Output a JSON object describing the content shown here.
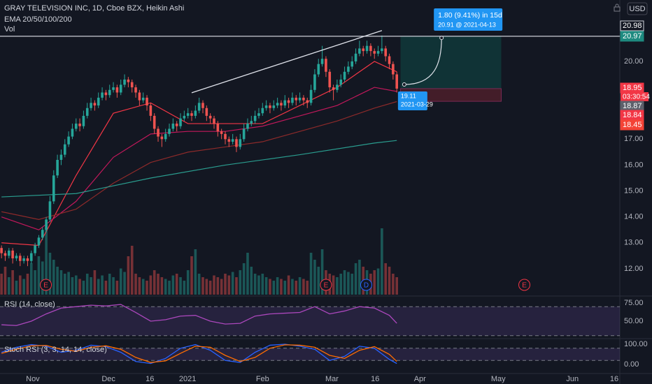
{
  "chart_data": [
    {
      "type": "candlestick",
      "title": "GRAY TELEVISION INC, 1D, Cboe BZX, Heikin Ashi",
      "indicator_label": "EMA 20/50/100/200",
      "volume_label": "Vol",
      "currency": "USD",
      "up_color": "#26a69a",
      "down_color": "#ef5350",
      "xlim": [
        -0.4,
        165.8
      ],
      "ylim": [
        11.0,
        22.37
      ],
      "yticks": [
        {
          "value": 12,
          "label": "12.00"
        },
        {
          "value": 13,
          "label": "13.00"
        },
        {
          "value": 14,
          "label": "14.00"
        },
        {
          "value": 15,
          "label": "15.00"
        },
        {
          "value": 16,
          "label": "16.00"
        },
        {
          "value": 17,
          "label": "17.00"
        },
        {
          "value": 20,
          "label": "20.00"
        }
      ],
      "xticks": [
        {
          "value": 8.4,
          "label": "Nov"
        },
        {
          "value": 28.7,
          "label": "Dec"
        },
        {
          "value": 39.8,
          "label": "16"
        },
        {
          "value": 49.9,
          "label": "2021"
        },
        {
          "value": 70.0,
          "label": "Feb"
        },
        {
          "value": 88.6,
          "label": "Mar"
        },
        {
          "value": 100.2,
          "label": "16"
        },
        {
          "value": 112.2,
          "label": "Apr"
        },
        {
          "value": 133.2,
          "label": "May"
        },
        {
          "value": 153.1,
          "label": "Jun"
        },
        {
          "value": 164.3,
          "label": "16"
        }
      ],
      "candles": [
        [
          12.8,
          12.9,
          12.4,
          12.6
        ],
        [
          12.6,
          12.7,
          12.3,
          12.5
        ],
        [
          12.5,
          12.8,
          12.4,
          12.7
        ],
        [
          12.7,
          12.8,
          12.2,
          12.4
        ],
        [
          12.4,
          12.6,
          12.3,
          12.5
        ],
        [
          12.5,
          12.6,
          12.1,
          12.3
        ],
        [
          12.3,
          12.5,
          12.2,
          12.4
        ],
        [
          12.4,
          12.5,
          12.1,
          12.3
        ],
        [
          12.3,
          12.7,
          12.2,
          12.6
        ],
        [
          12.6,
          13.0,
          12.5,
          12.9
        ],
        [
          12.9,
          13.3,
          12.8,
          13.2
        ],
        [
          13.2,
          13.6,
          13.1,
          13.5
        ],
        [
          13.5,
          14.0,
          13.4,
          13.9
        ],
        [
          13.9,
          14.8,
          13.8,
          14.6
        ],
        [
          14.6,
          15.8,
          14.5,
          15.6
        ],
        [
          15.6,
          16.4,
          15.5,
          16.2
        ],
        [
          16.2,
          16.6,
          16.0,
          16.4
        ],
        [
          16.4,
          17.0,
          16.3,
          16.8
        ],
        [
          16.8,
          17.3,
          16.7,
          17.1
        ],
        [
          17.1,
          17.6,
          17.0,
          17.4
        ],
        [
          17.4,
          17.8,
          17.3,
          17.6
        ],
        [
          17.6,
          17.8,
          17.3,
          17.5
        ],
        [
          17.5,
          18.1,
          17.4,
          17.9
        ],
        [
          17.9,
          18.4,
          17.8,
          18.2
        ],
        [
          18.2,
          18.6,
          18.1,
          18.4
        ],
        [
          18.4,
          18.5,
          18.1,
          18.3
        ],
        [
          18.3,
          18.8,
          18.2,
          18.6
        ],
        [
          18.6,
          19.0,
          18.5,
          18.8
        ],
        [
          18.8,
          18.9,
          18.5,
          18.7
        ],
        [
          18.7,
          19.1,
          18.6,
          18.9
        ],
        [
          18.9,
          19.2,
          18.8,
          19.0
        ],
        [
          19.0,
          19.1,
          18.6,
          18.8
        ],
        [
          18.8,
          19.3,
          18.7,
          19.1
        ],
        [
          19.1,
          19.5,
          19.0,
          19.3
        ],
        [
          19.3,
          19.4,
          19.0,
          19.2
        ],
        [
          19.2,
          19.3,
          18.8,
          19.0
        ],
        [
          19.0,
          19.1,
          18.6,
          18.8
        ],
        [
          18.8,
          18.9,
          18.3,
          18.5
        ],
        [
          18.5,
          18.8,
          18.4,
          18.6
        ],
        [
          18.6,
          18.7,
          18.1,
          18.3
        ],
        [
          18.3,
          18.4,
          17.7,
          17.9
        ],
        [
          17.9,
          18.0,
          17.2,
          17.4
        ],
        [
          17.4,
          17.5,
          16.9,
          17.1
        ],
        [
          17.1,
          17.2,
          16.7,
          17.0
        ],
        [
          17.0,
          17.4,
          16.9,
          17.2
        ],
        [
          17.2,
          17.6,
          17.1,
          17.4
        ],
        [
          17.4,
          17.8,
          17.3,
          17.6
        ],
        [
          17.6,
          17.7,
          17.3,
          17.5
        ],
        [
          17.5,
          18.0,
          17.4,
          17.8
        ],
        [
          17.8,
          18.1,
          17.7,
          17.9
        ],
        [
          17.9,
          18.2,
          17.8,
          18.0
        ],
        [
          18.0,
          18.1,
          17.7,
          17.9
        ],
        [
          17.9,
          18.3,
          17.8,
          18.1
        ],
        [
          18.1,
          18.6,
          18.0,
          18.4
        ],
        [
          18.4,
          18.5,
          18.0,
          18.2
        ],
        [
          18.2,
          18.3,
          17.7,
          17.9
        ],
        [
          17.9,
          18.0,
          17.6,
          17.8
        ],
        [
          17.8,
          17.9,
          17.4,
          17.6
        ],
        [
          17.6,
          17.7,
          17.1,
          17.3
        ],
        [
          17.3,
          17.4,
          17.0,
          17.2
        ],
        [
          17.2,
          17.3,
          16.8,
          17.0
        ],
        [
          17.0,
          17.1,
          16.7,
          16.9
        ],
        [
          16.9,
          17.2,
          16.8,
          17.0
        ],
        [
          17.0,
          17.1,
          16.5,
          16.7
        ],
        [
          16.7,
          17.2,
          16.6,
          17.0
        ],
        [
          17.0,
          17.6,
          16.9,
          17.4
        ],
        [
          17.4,
          17.8,
          17.3,
          17.6
        ],
        [
          17.6,
          17.9,
          17.5,
          17.7
        ],
        [
          17.7,
          18.1,
          17.6,
          17.9
        ],
        [
          17.9,
          18.2,
          17.8,
          18.0
        ],
        [
          18.0,
          18.4,
          17.9,
          18.2
        ],
        [
          18.2,
          18.5,
          18.1,
          18.3
        ],
        [
          18.3,
          18.4,
          18.0,
          18.2
        ],
        [
          18.2,
          18.5,
          18.1,
          18.3
        ],
        [
          18.3,
          18.6,
          18.2,
          18.4
        ],
        [
          18.4,
          18.5,
          18.1,
          18.3
        ],
        [
          18.3,
          18.7,
          18.2,
          18.5
        ],
        [
          18.5,
          18.6,
          18.2,
          18.4
        ],
        [
          18.4,
          18.8,
          18.3,
          18.6
        ],
        [
          18.6,
          18.7,
          18.3,
          18.5
        ],
        [
          18.5,
          18.8,
          18.4,
          18.6
        ],
        [
          18.6,
          18.7,
          18.3,
          18.5
        ],
        [
          18.5,
          18.6,
          18.2,
          18.4
        ],
        [
          18.4,
          19.1,
          18.3,
          18.9
        ],
        [
          18.9,
          19.7,
          18.8,
          19.5
        ],
        [
          19.5,
          20.1,
          19.4,
          19.9
        ],
        [
          19.9,
          20.6,
          19.8,
          20.1
        ],
        [
          20.1,
          20.2,
          19.4,
          19.6
        ],
        [
          19.6,
          19.7,
          18.8,
          19.0
        ],
        [
          19.0,
          19.1,
          18.5,
          18.9
        ],
        [
          18.9,
          19.3,
          18.8,
          19.1
        ],
        [
          19.1,
          19.5,
          19.0,
          19.3
        ],
        [
          19.3,
          19.8,
          19.2,
          19.6
        ],
        [
          19.6,
          20.0,
          19.5,
          19.8
        ],
        [
          19.8,
          20.2,
          19.7,
          20.0
        ],
        [
          20.0,
          20.5,
          19.9,
          20.3
        ],
        [
          20.3,
          20.8,
          20.2,
          20.5
        ],
        [
          20.5,
          20.6,
          20.2,
          20.4
        ],
        [
          20.4,
          20.8,
          20.3,
          20.6
        ],
        [
          20.6,
          20.7,
          20.2,
          20.4
        ],
        [
          20.4,
          20.5,
          20.1,
          20.3
        ],
        [
          20.3,
          20.6,
          20.2,
          20.4
        ],
        [
          20.4,
          21.0,
          20.3,
          20.5
        ],
        [
          20.5,
          20.6,
          20.0,
          20.2
        ],
        [
          20.2,
          20.3,
          19.7,
          19.9
        ],
        [
          19.9,
          20.0,
          19.3,
          19.5
        ],
        [
          19.5,
          19.6,
          18.8,
          18.95
        ]
      ],
      "volume": [
        60,
        80,
        50,
        70,
        40,
        55,
        45,
        60,
        90,
        70,
        110,
        95,
        190,
        120,
        100,
        80,
        70,
        60,
        65,
        50,
        55,
        45,
        40,
        60,
        50,
        70,
        45,
        55,
        40,
        60,
        50,
        40,
        75,
        65,
        110,
        140,
        60,
        50,
        45,
        40,
        55,
        70,
        60,
        50,
        45,
        40,
        55,
        60,
        50,
        40,
        70,
        110,
        130,
        60,
        50,
        45,
        40,
        55,
        50,
        45,
        60,
        55,
        65,
        50,
        70,
        90,
        120,
        80,
        60,
        55,
        60,
        50,
        45,
        40,
        50,
        45,
        40,
        55,
        45,
        40,
        50,
        45,
        40,
        120,
        100,
        80,
        130,
        70,
        60,
        55,
        50,
        60,
        70,
        65,
        60,
        90,
        100,
        80,
        70,
        60,
        70,
        75,
        190,
        90,
        80,
        60,
        50
      ],
      "ema": [
        {
          "color": "#f23645",
          "x": [
            0,
            10,
            20,
            30,
            40,
            50,
            60,
            70,
            80,
            90,
            100,
            106
          ],
          "values": [
            13.0,
            12.9,
            15.6,
            18.0,
            18.4,
            17.6,
            17.6,
            17.6,
            18.3,
            19.0,
            20.0,
            19.6
          ]
        },
        {
          "color": "#c2185b",
          "x": [
            0,
            10,
            20,
            30,
            40,
            50,
            60,
            70,
            80,
            90,
            100,
            106
          ],
          "values": [
            14.0,
            13.5,
            14.6,
            16.3,
            17.2,
            17.3,
            17.3,
            17.5,
            17.9,
            18.3,
            19.0,
            18.84
          ]
        },
        {
          "color": "#8d2a2a",
          "x": [
            0,
            10,
            20,
            30,
            40,
            50,
            60,
            70,
            80,
            90,
            100,
            106
          ],
          "values": [
            14.2,
            13.9,
            14.3,
            15.3,
            16.1,
            16.5,
            16.7,
            16.9,
            17.3,
            17.7,
            18.2,
            18.45
          ]
        },
        {
          "color": "#2a9d8f",
          "x": [
            0,
            20,
            40,
            60,
            80,
            100,
            106
          ],
          "values": [
            14.77,
            14.9,
            15.5,
            16.0,
            16.4,
            16.85,
            16.95
          ]
        }
      ],
      "trendline": {
        "x": [
          51,
          102
        ],
        "values": [
          18.79,
          21.19
        ]
      },
      "position": {
        "x": [
          107,
          134
        ],
        "target": 20.97,
        "entry": 18.95,
        "stop": 18.46
      },
      "forecast": {
        "x": [
          108,
          118
        ],
        "values": [
          19.11,
          20.91
        ],
        "start_date": "2021-03-29",
        "end_label": "1.80 (9.41%) in 15d",
        "end_detail": "20.91 @ 2021-04-13"
      },
      "price_tags": [
        {
          "value": 20.98,
          "color": "#131722"
        },
        {
          "value": 20.97,
          "color": "#1e8a80",
          "line": true
        },
        {
          "value": 18.95,
          "color": "#f23645"
        },
        {
          "value": 18.87,
          "color": "#5d606b"
        },
        {
          "value": 18.84,
          "color": "#f23645"
        },
        {
          "value": 18.45,
          "color": "#f44336"
        }
      ],
      "countdown": "03:30:54",
      "events": [
        {
          "label": "E",
          "x": 11.9,
          "color": "#f23645"
        },
        {
          "label": "E",
          "x": 87,
          "color": "#f23645"
        },
        {
          "label": "D",
          "x": 97.8,
          "color": "#2962ff"
        },
        {
          "label": "E",
          "x": 140.2,
          "color": "#f23645"
        }
      ]
    },
    {
      "type": "line",
      "title": "RSI (14, close)",
      "color": "#ab47bc",
      "ylim": [
        26.9,
        82.7
      ],
      "yticks": [
        {
          "value": 75,
          "label": "75.00"
        },
        {
          "value": 50,
          "label": "50.00"
        }
      ],
      "bands": [
        30,
        70
      ],
      "x": [
        0,
        4,
        8,
        12,
        16,
        20,
        24,
        28,
        32,
        36,
        40,
        44,
        48,
        52,
        56,
        60,
        64,
        68,
        72,
        76,
        80,
        84,
        88,
        92,
        96,
        100,
        104,
        106
      ],
      "values": [
        45,
        44,
        50,
        60,
        68,
        70,
        72,
        71,
        73,
        62,
        50,
        52,
        57,
        58,
        50,
        46,
        47,
        57,
        60,
        61,
        62,
        70,
        60,
        64,
        70,
        68,
        58,
        47
      ]
    },
    {
      "type": "line",
      "title": "Stoch RSI (3, 3, 14, 14, close)",
      "ylim": [
        -41,
        124
      ],
      "yticks": [
        {
          "value": 100,
          "label": "100.00"
        },
        {
          "value": 0,
          "label": "0.00"
        }
      ],
      "bands": [
        20,
        80
      ],
      "x": [
        0,
        4,
        8,
        12,
        16,
        20,
        24,
        28,
        32,
        36,
        40,
        44,
        48,
        52,
        56,
        60,
        64,
        68,
        72,
        76,
        80,
        84,
        88,
        92,
        96,
        100,
        104,
        106
      ],
      "series": [
        {
          "color": "#2962ff",
          "values": [
            60,
            85,
            98,
            90,
            60,
            70,
            95,
            88,
            60,
            15,
            5,
            30,
            80,
            98,
            70,
            20,
            10,
            60,
            95,
            100,
            90,
            75,
            20,
            40,
            90,
            80,
            25,
            5
          ]
        },
        {
          "color": "#ff6d00",
          "values": [
            55,
            75,
            92,
            94,
            75,
            65,
            85,
            92,
            75,
            35,
            10,
            18,
            55,
            90,
            85,
            45,
            15,
            35,
            80,
            97,
            95,
            85,
            45,
            30,
            70,
            88,
            50,
            15
          ]
        }
      ]
    }
  ]
}
